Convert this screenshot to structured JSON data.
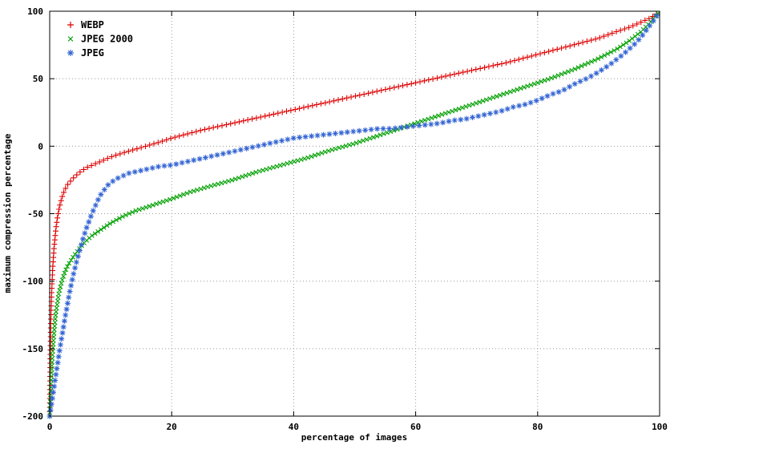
{
  "chart_data": {
    "type": "scatter",
    "title": "",
    "xlabel": "percentage of images",
    "ylabel": "maximum compression percentage",
    "xlim": [
      0,
      100
    ],
    "ylim": [
      -200,
      100
    ],
    "xticks": [
      0,
      20,
      40,
      60,
      80,
      100
    ],
    "yticks": [
      -200,
      -150,
      -100,
      -50,
      0,
      50,
      100
    ],
    "grid": true,
    "grid_color": "#9a9a9a",
    "background_color": "#ffffff",
    "axis_color": "#000000",
    "legend_position": "top-left-inside",
    "series": [
      {
        "id": "webp",
        "name": "WEBP",
        "marker": "plus",
        "color": "#dd0000",
        "marker_step_px": 5.5,
        "points": [
          [
            0,
            -200
          ],
          [
            0.1,
            -155
          ],
          [
            0.2,
            -128
          ],
          [
            0.35,
            -105
          ],
          [
            0.5,
            -90
          ],
          [
            0.7,
            -76
          ],
          [
            1,
            -62
          ],
          [
            1.3,
            -52
          ],
          [
            1.6,
            -45
          ],
          [
            2,
            -38
          ],
          [
            2.5,
            -32
          ],
          [
            3,
            -28
          ],
          [
            4,
            -23
          ],
          [
            5,
            -19
          ],
          [
            6,
            -16
          ],
          [
            7,
            -14
          ],
          [
            8,
            -12
          ],
          [
            10,
            -8
          ],
          [
            12,
            -5
          ],
          [
            15,
            -1
          ],
          [
            18,
            3
          ],
          [
            20,
            6
          ],
          [
            25,
            12
          ],
          [
            30,
            17
          ],
          [
            35,
            22
          ],
          [
            40,
            27
          ],
          [
            45,
            32
          ],
          [
            50,
            37
          ],
          [
            55,
            42
          ],
          [
            60,
            47
          ],
          [
            65,
            52
          ],
          [
            70,
            57
          ],
          [
            75,
            62
          ],
          [
            80,
            68
          ],
          [
            85,
            74
          ],
          [
            90,
            80
          ],
          [
            93,
            85
          ],
          [
            95,
            88
          ],
          [
            97,
            92
          ],
          [
            98.5,
            95
          ],
          [
            99.5,
            98
          ],
          [
            100,
            100
          ]
        ]
      },
      {
        "id": "jpeg2000",
        "name": "JPEG 2000",
        "marker": "cross",
        "color": "#00a000",
        "marker_step_px": 4.5,
        "points": [
          [
            0,
            -200
          ],
          [
            0.2,
            -178
          ],
          [
            0.4,
            -160
          ],
          [
            0.6,
            -146
          ],
          [
            0.8,
            -134
          ],
          [
            1,
            -124
          ],
          [
            1.5,
            -109
          ],
          [
            2,
            -100
          ],
          [
            2.5,
            -93
          ],
          [
            3,
            -88
          ],
          [
            4,
            -81
          ],
          [
            5,
            -75
          ],
          [
            6,
            -70
          ],
          [
            7,
            -66
          ],
          [
            8,
            -63
          ],
          [
            9,
            -60
          ],
          [
            10,
            -57
          ],
          [
            12,
            -52
          ],
          [
            14,
            -48
          ],
          [
            16,
            -45
          ],
          [
            18,
            -42
          ],
          [
            20,
            -39
          ],
          [
            23,
            -34
          ],
          [
            26,
            -30
          ],
          [
            30,
            -25
          ],
          [
            34,
            -19
          ],
          [
            38,
            -14
          ],
          [
            42,
            -9
          ],
          [
            46,
            -3
          ],
          [
            50,
            2
          ],
          [
            54,
            8
          ],
          [
            58,
            14
          ],
          [
            62,
            20
          ],
          [
            66,
            26
          ],
          [
            70,
            32
          ],
          [
            74,
            38
          ],
          [
            78,
            44
          ],
          [
            82,
            50
          ],
          [
            86,
            57
          ],
          [
            90,
            65
          ],
          [
            93,
            72
          ],
          [
            95,
            78
          ],
          [
            97,
            85
          ],
          [
            98.5,
            92
          ],
          [
            99.5,
            97
          ],
          [
            100,
            100
          ]
        ]
      },
      {
        "id": "jpeg",
        "name": "JPEG",
        "marker": "asterisk",
        "color": "#3465d4",
        "marker_step_px": 7.5,
        "points": [
          [
            0,
            -200
          ],
          [
            0.4,
            -188
          ],
          [
            0.8,
            -176
          ],
          [
            1.2,
            -164
          ],
          [
            1.6,
            -152
          ],
          [
            2,
            -141
          ],
          [
            2.4,
            -130
          ],
          [
            2.8,
            -120
          ],
          [
            3.2,
            -110
          ],
          [
            3.6,
            -101
          ],
          [
            4,
            -93
          ],
          [
            4.5,
            -84
          ],
          [
            5,
            -76
          ],
          [
            5.5,
            -68
          ],
          [
            6,
            -61
          ],
          [
            6.5,
            -55
          ],
          [
            7,
            -49
          ],
          [
            7.5,
            -44
          ],
          [
            8,
            -39
          ],
          [
            8.5,
            -35
          ],
          [
            9,
            -32
          ],
          [
            9.5,
            -29
          ],
          [
            10,
            -27
          ],
          [
            11,
            -24
          ],
          [
            12,
            -22
          ],
          [
            13,
            -20
          ],
          [
            14,
            -19
          ],
          [
            16,
            -17
          ],
          [
            18,
            -15
          ],
          [
            20,
            -14
          ],
          [
            22,
            -12
          ],
          [
            24,
            -10
          ],
          [
            26,
            -8
          ],
          [
            28,
            -6
          ],
          [
            30,
            -4
          ],
          [
            32,
            -2
          ],
          [
            34,
            0
          ],
          [
            36,
            2
          ],
          [
            38,
            4
          ],
          [
            40,
            6
          ],
          [
            42,
            7
          ],
          [
            44,
            8
          ],
          [
            46,
            9
          ],
          [
            48,
            10
          ],
          [
            50,
            11
          ],
          [
            52,
            12
          ],
          [
            54,
            13
          ],
          [
            56,
            13
          ],
          [
            58,
            14
          ],
          [
            60,
            15
          ],
          [
            62,
            16
          ],
          [
            64,
            17
          ],
          [
            66,
            19
          ],
          [
            68,
            20
          ],
          [
            70,
            22
          ],
          [
            72,
            24
          ],
          [
            74,
            26
          ],
          [
            76,
            29
          ],
          [
            78,
            31
          ],
          [
            80,
            34
          ],
          [
            82,
            38
          ],
          [
            84,
            41
          ],
          [
            86,
            46
          ],
          [
            88,
            50
          ],
          [
            90,
            55
          ],
          [
            92,
            61
          ],
          [
            94,
            68
          ],
          [
            96,
            76
          ],
          [
            97,
            81
          ],
          [
            98,
            87
          ],
          [
            99,
            93
          ],
          [
            100,
            100
          ]
        ]
      }
    ]
  }
}
